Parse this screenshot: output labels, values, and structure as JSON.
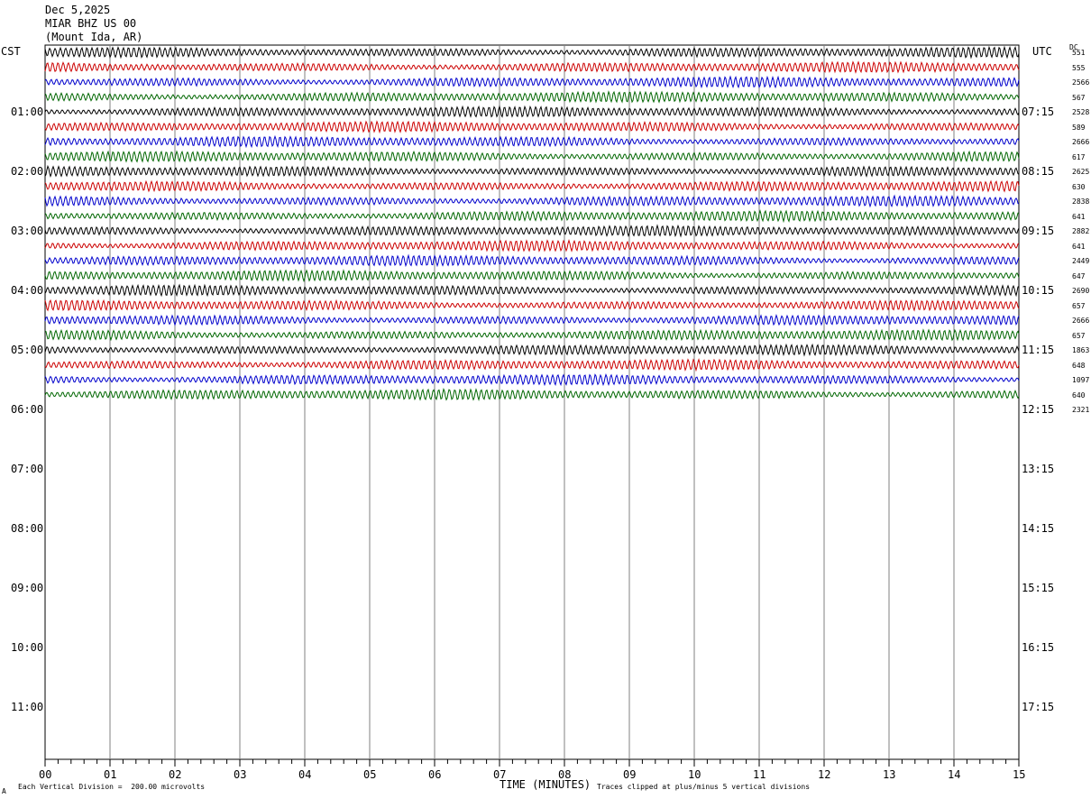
{
  "header": {
    "date": "Dec 5,2025",
    "station": "MIAR BHZ US 00",
    "location": "(Mount Ida, AR)"
  },
  "left_zone": "CST",
  "right_zone": "UTC",
  "dc_label": "DC",
  "footer": {
    "vertical_division": "Each Vertical Division =  200.00 microvolts",
    "clip_note": "Traces clipped at plus/minus 5 vertical divisions",
    "corner_mark": "A"
  },
  "colors": {
    "trace_cycle": [
      "#000000",
      "#cc0000",
      "#0000cc",
      "#006600"
    ],
    "grid": "#808080"
  },
  "chart_data": {
    "type": "line",
    "xlabel": "TIME (MINUTES)",
    "xlim": [
      0,
      15
    ],
    "x_ticks": [
      "00",
      "01",
      "02",
      "03",
      "04",
      "05",
      "06",
      "07",
      "08",
      "09",
      "10",
      "11",
      "12",
      "13",
      "14",
      "15"
    ],
    "left_hour_labels": [
      "01:00",
      "02:00",
      "03:00",
      "04:00",
      "05:00",
      "06:00",
      "07:00",
      "08:00",
      "09:00",
      "10:00",
      "11:00"
    ],
    "right_hour_labels": [
      "07:15",
      "08:15",
      "09:15",
      "10:15",
      "11:15",
      "12:15",
      "13:15",
      "14:15",
      "15:15",
      "16:15",
      "17:15"
    ],
    "traces_per_hour": 4,
    "recorded_traces": 24,
    "dc_offsets": [
      "551",
      "555",
      "2566",
      "567",
      "2528",
      "589",
      "2666",
      "617",
      "2625",
      "630",
      "2838",
      "641",
      "2882",
      "641",
      "2449",
      "647",
      "2690",
      "657",
      "2666",
      "657",
      "1863",
      "648",
      "1097",
      "640",
      "2321"
    ]
  }
}
